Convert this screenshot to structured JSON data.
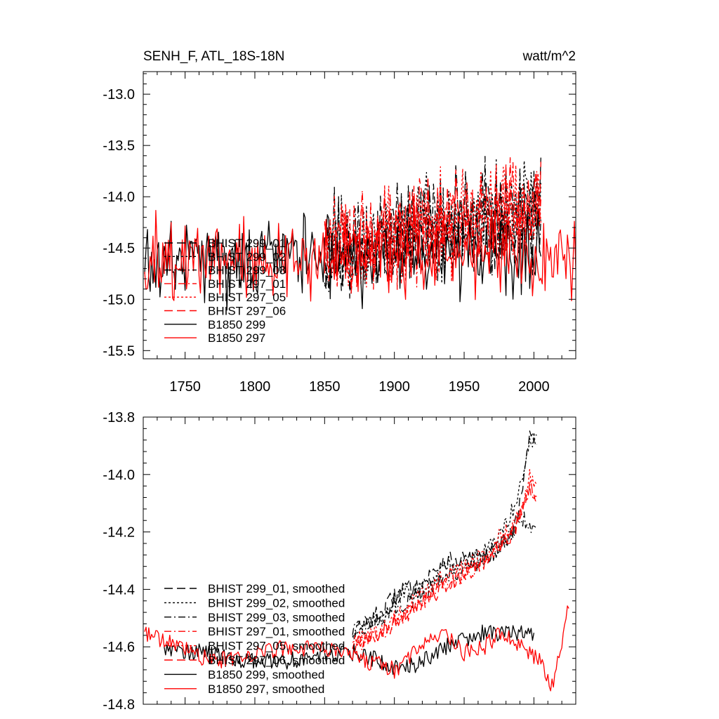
{
  "header": {
    "title": "SENH_F, ATL_18S-18N",
    "units": "watt/m^2"
  },
  "colors": {
    "black_series": "#000000",
    "red_series": "#ff0000"
  },
  "chart_data": [
    {
      "type": "line",
      "xlim": [
        1720,
        2030
      ],
      "ylim": [
        -15.58,
        -12.78
      ],
      "x_ticks": [
        1750,
        1800,
        1850,
        1900,
        1950,
        2000
      ],
      "y_ticks": [
        -13.0,
        -13.5,
        -14.0,
        -14.5,
        -15.0,
        -15.5
      ],
      "grid": false,
      "legend_placement": "left",
      "series": [
        {
          "name": "BHIST 299_01",
          "color": "#000000",
          "dash": "long-dash",
          "x_range": [
            1850,
            2005
          ],
          "y_start_mean": -14.55,
          "y_end_mean": -14.1,
          "noise": 0.35
        },
        {
          "name": "BHIST 299_02",
          "color": "#000000",
          "dash": "dotted",
          "x_range": [
            1850,
            2005
          ],
          "y_start_mean": -14.55,
          "y_end_mean": -14.05,
          "noise": 0.35
        },
        {
          "name": "BHIST 299_03",
          "color": "#000000",
          "dash": "dash-dot",
          "x_range": [
            1850,
            2005
          ],
          "y_start_mean": -14.55,
          "y_end_mean": -14.1,
          "noise": 0.35
        },
        {
          "name": "BHIST 297_01",
          "color": "#ff0000",
          "dash": "dash-dot",
          "x_range": [
            1850,
            2005
          ],
          "y_start_mean": -14.5,
          "y_end_mean": -14.1,
          "noise": 0.33
        },
        {
          "name": "BHIST 297_05",
          "color": "#ff0000",
          "dash": "dotted",
          "x_range": [
            1850,
            2005
          ],
          "y_start_mean": -14.5,
          "y_end_mean": -14.05,
          "noise": 0.33
        },
        {
          "name": "BHIST 297_06",
          "color": "#ff0000",
          "dash": "long-dash",
          "x_range": [
            1850,
            2005
          ],
          "y_start_mean": -14.5,
          "y_end_mean": -14.1,
          "noise": 0.33
        },
        {
          "name": "B1850 299",
          "color": "#000000",
          "dash": "solid",
          "x_range": [
            1721,
            2005
          ],
          "y_start_mean": -14.6,
          "y_end_mean": -14.55,
          "noise": 0.28
        },
        {
          "name": "B1850 297",
          "color": "#ff0000",
          "dash": "solid",
          "x_range": [
            1721,
            2030
          ],
          "y_start_mean": -14.6,
          "y_end_mean": -14.55,
          "noise": 0.28
        }
      ]
    },
    {
      "type": "line",
      "xlim": [
        1720,
        2030
      ],
      "ylim": [
        -14.8,
        -13.8
      ],
      "y_ticks": [
        -13.8,
        -14.0,
        -14.2,
        -14.4,
        -14.6,
        -14.8
      ],
      "grid": false,
      "legend_placement": "bottom-left",
      "series": [
        {
          "name": "BHIST 299_01, smoothed",
          "color": "#000000",
          "dash": "long-dash",
          "x_range": [
            1870,
            2002
          ],
          "points": [
            [
              1870,
              -14.55
            ],
            [
              1890,
              -14.48
            ],
            [
              1905,
              -14.4
            ],
            [
              1920,
              -14.38
            ],
            [
              1935,
              -14.3
            ],
            [
              1950,
              -14.3
            ],
            [
              1965,
              -14.28
            ],
            [
              1975,
              -14.25
            ],
            [
              1985,
              -14.2
            ],
            [
              1992,
              -14.05
            ],
            [
              1997,
              -13.85
            ],
            [
              2002,
              -13.88
            ]
          ]
        },
        {
          "name": "BHIST 299_02, smoothed",
          "color": "#000000",
          "dash": "dotted",
          "x_range": [
            1870,
            2002
          ],
          "points": [
            [
              1870,
              -14.55
            ],
            [
              1890,
              -14.5
            ],
            [
              1905,
              -14.42
            ],
            [
              1920,
              -14.4
            ],
            [
              1935,
              -14.32
            ],
            [
              1950,
              -14.3
            ],
            [
              1965,
              -14.27
            ],
            [
              1975,
              -14.22
            ],
            [
              1985,
              -14.12
            ],
            [
              1992,
              -14.0
            ],
            [
              1997,
              -13.88
            ],
            [
              2002,
              -13.88
            ]
          ]
        },
        {
          "name": "BHIST 299_03, smoothed",
          "color": "#000000",
          "dash": "dash-dot",
          "x_range": [
            1870,
            2002
          ],
          "points": [
            [
              1870,
              -14.55
            ],
            [
              1890,
              -14.5
            ],
            [
              1905,
              -14.45
            ],
            [
              1920,
              -14.42
            ],
            [
              1935,
              -14.35
            ],
            [
              1950,
              -14.33
            ],
            [
              1965,
              -14.3
            ],
            [
              1975,
              -14.25
            ],
            [
              1985,
              -14.2
            ],
            [
              1992,
              -14.15
            ],
            [
              1997,
              -14.18
            ],
            [
              2002,
              -14.2
            ]
          ]
        },
        {
          "name": "BHIST 297_01, smoothed",
          "color": "#ff0000",
          "dash": "dash-dot",
          "x_range": [
            1870,
            2002
          ],
          "points": [
            [
              1870,
              -14.6
            ],
            [
              1890,
              -14.55
            ],
            [
              1905,
              -14.5
            ],
            [
              1920,
              -14.45
            ],
            [
              1935,
              -14.38
            ],
            [
              1950,
              -14.35
            ],
            [
              1965,
              -14.3
            ],
            [
              1975,
              -14.25
            ],
            [
              1985,
              -14.2
            ],
            [
              1992,
              -14.12
            ],
            [
              1997,
              -14.05
            ],
            [
              2002,
              -14.08
            ]
          ]
        },
        {
          "name": "BHIST 297_05, smoothed",
          "color": "#ff0000",
          "dash": "dotted",
          "x_range": [
            1870,
            2002
          ],
          "points": [
            [
              1870,
              -14.58
            ],
            [
              1890,
              -14.55
            ],
            [
              1905,
              -14.48
            ],
            [
              1920,
              -14.42
            ],
            [
              1935,
              -14.35
            ],
            [
              1950,
              -14.32
            ],
            [
              1965,
              -14.28
            ],
            [
              1975,
              -14.22
            ],
            [
              1985,
              -14.18
            ],
            [
              1992,
              -14.1
            ],
            [
              1997,
              -14.0
            ],
            [
              2002,
              -14.05
            ]
          ]
        },
        {
          "name": "BHIST 297_06, smoothed",
          "color": "#ff0000",
          "dash": "long-dash",
          "x_range": [
            1870,
            2002
          ],
          "points": [
            [
              1870,
              -14.6
            ],
            [
              1890,
              -14.55
            ],
            [
              1905,
              -14.5
            ],
            [
              1920,
              -14.45
            ],
            [
              1935,
              -14.4
            ],
            [
              1950,
              -14.35
            ],
            [
              1965,
              -14.3
            ],
            [
              1975,
              -14.25
            ],
            [
              1985,
              -14.2
            ],
            [
              1992,
              -14.12
            ],
            [
              1997,
              -14.05
            ],
            [
              2002,
              -14.06
            ]
          ]
        },
        {
          "name": "B1850 299, smoothed",
          "color": "#000000",
          "dash": "solid",
          "x_range": [
            1735,
            2000
          ],
          "points": [
            [
              1735,
              -14.6
            ],
            [
              1760,
              -14.62
            ],
            [
              1790,
              -14.65
            ],
            [
              1820,
              -14.65
            ],
            [
              1850,
              -14.63
            ],
            [
              1870,
              -14.62
            ],
            [
              1890,
              -14.65
            ],
            [
              1905,
              -14.68
            ],
            [
              1920,
              -14.65
            ],
            [
              1935,
              -14.6
            ],
            [
              1950,
              -14.58
            ],
            [
              1965,
              -14.55
            ],
            [
              1980,
              -14.55
            ],
            [
              2000,
              -14.55
            ]
          ]
        },
        {
          "name": "B1850 297, smoothed",
          "color": "#ff0000",
          "dash": "solid",
          "x_range": [
            1721,
            2025
          ],
          "points": [
            [
              1721,
              -14.55
            ],
            [
              1745,
              -14.6
            ],
            [
              1770,
              -14.65
            ],
            [
              1800,
              -14.62
            ],
            [
              1830,
              -14.6
            ],
            [
              1860,
              -14.62
            ],
            [
              1880,
              -14.65
            ],
            [
              1900,
              -14.68
            ],
            [
              1920,
              -14.6
            ],
            [
              1935,
              -14.55
            ],
            [
              1950,
              -14.62
            ],
            [
              1965,
              -14.6
            ],
            [
              1975,
              -14.55
            ],
            [
              1990,
              -14.6
            ],
            [
              2005,
              -14.65
            ],
            [
              2012,
              -14.75
            ],
            [
              2020,
              -14.6
            ],
            [
              2025,
              -14.45
            ]
          ]
        }
      ]
    }
  ]
}
